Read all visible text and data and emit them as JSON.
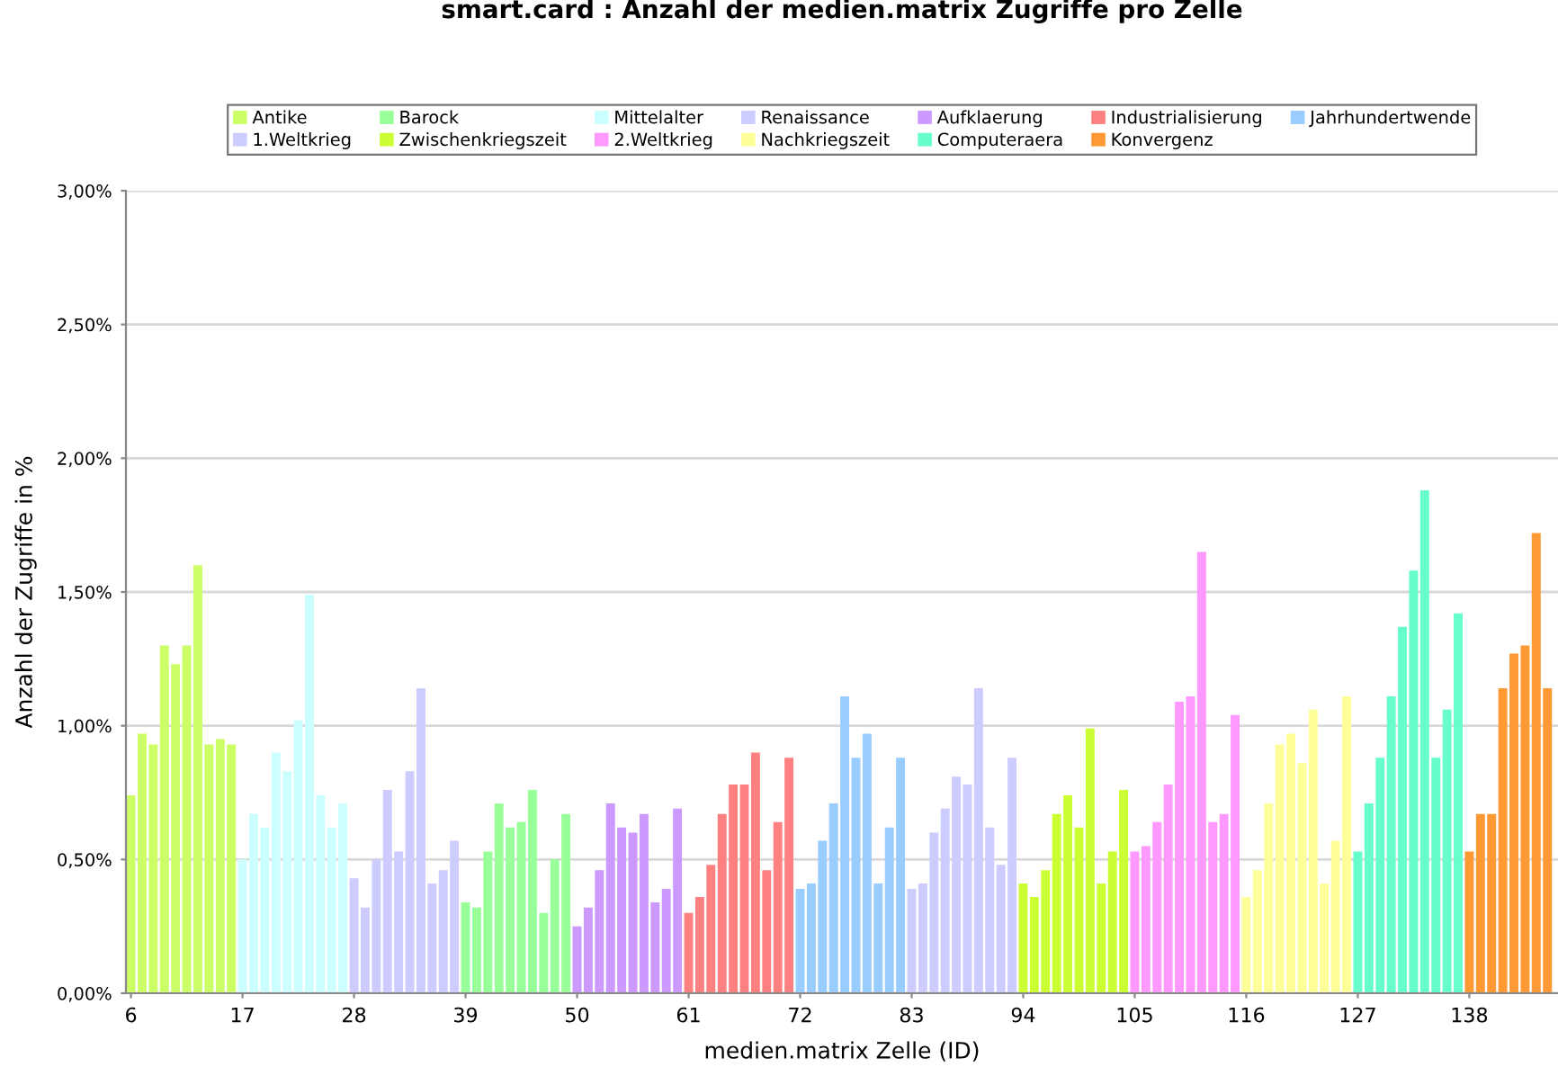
{
  "chart_data": {
    "type": "bar",
    "title": "smart.card : Anzahl der medien.matrix Zugriffe pro Zelle",
    "xlabel": "medien.matrix Zelle (ID)",
    "ylabel": "Anzahl der Zugriffe in %",
    "categories": [
      "6",
      null,
      null,
      null,
      null,
      null,
      null,
      null,
      null,
      null,
      "17",
      null,
      null,
      null,
      null,
      null,
      null,
      null,
      null,
      null,
      "28",
      null,
      null,
      null,
      null,
      null,
      null,
      null,
      null,
      null,
      "39",
      null,
      null,
      null,
      null,
      null,
      null,
      null,
      null,
      null,
      "50",
      null,
      null,
      null,
      null,
      null,
      null,
      null,
      null,
      null,
      "61",
      null,
      null,
      null,
      null,
      null,
      null,
      null,
      null,
      null,
      "72",
      null,
      null,
      null,
      null,
      null,
      null,
      null,
      null,
      null,
      "83",
      null,
      null,
      null,
      null,
      null,
      null,
      null,
      null,
      null,
      "94",
      null,
      null,
      null,
      null,
      null,
      null,
      null,
      null,
      null,
      "105",
      null,
      null,
      null,
      null,
      null,
      null,
      null,
      null,
      null,
      "116",
      null,
      null,
      null,
      null,
      null,
      null,
      null,
      null,
      null,
      "127",
      null,
      null,
      null,
      null,
      null,
      null,
      null,
      null,
      null,
      "138",
      null,
      null,
      null,
      null,
      null,
      null,
      null
    ],
    "series": [
      {
        "name": "Antike",
        "color": "#ccff66",
        "values": [
          0.74,
          0.97,
          0.93,
          1.3,
          1.23,
          1.3,
          1.6,
          0.93,
          0.95,
          0.93,
          null,
          null,
          null,
          null,
          null,
          null,
          null,
          null,
          null,
          null,
          null,
          null,
          null,
          null,
          null,
          null,
          null,
          null,
          null,
          null,
          null,
          null,
          null,
          null,
          null,
          null,
          null,
          null,
          null,
          null,
          null,
          null,
          null,
          null,
          null,
          null,
          null,
          null,
          null,
          null,
          null,
          null,
          null,
          null,
          null,
          null,
          null,
          null,
          null,
          null,
          null,
          null,
          null,
          null,
          null,
          null,
          null,
          null,
          null,
          null,
          null,
          null,
          null,
          null,
          null,
          null,
          null,
          null,
          null,
          null,
          null,
          null,
          null,
          null,
          null,
          null,
          null,
          null,
          null,
          null,
          null,
          null,
          null,
          null,
          null,
          null,
          null,
          null,
          null,
          null,
          null,
          null,
          null,
          null,
          null,
          null,
          null,
          null,
          null,
          null,
          null,
          null,
          null,
          null,
          null,
          null,
          null,
          null,
          null,
          null,
          null,
          null,
          null,
          null,
          null,
          null,
          null,
          null
        ]
      },
      {
        "name": "Barock",
        "color": "#99ff99",
        "values": [
          null,
          null,
          null,
          null,
          null,
          null,
          null,
          null,
          null,
          null,
          null,
          null,
          null,
          null,
          null,
          null,
          null,
          null,
          null,
          null,
          null,
          null,
          null,
          null,
          null,
          null,
          null,
          null,
          null,
          null,
          0.34,
          0.32,
          0.53,
          0.71,
          0.62,
          0.64,
          0.76,
          0.3,
          0.5,
          0.67,
          null,
          null,
          null,
          null,
          null,
          null,
          null,
          null,
          null,
          null,
          null,
          null,
          null,
          null,
          null,
          null,
          null,
          null,
          null,
          null,
          null,
          null,
          null,
          null,
          null,
          null,
          null,
          null,
          null,
          null,
          null,
          null,
          null,
          null,
          null,
          null,
          null,
          null,
          null,
          null,
          null,
          null,
          null,
          null,
          null,
          null,
          null,
          null,
          null,
          null,
          null,
          null,
          null,
          null,
          null,
          null,
          null,
          null,
          null,
          null,
          null,
          null,
          null,
          null,
          null,
          null,
          null,
          null,
          null,
          null,
          null,
          null,
          null,
          null,
          null,
          null,
          null,
          null,
          null,
          null,
          null,
          null,
          null,
          null,
          null,
          null,
          null,
          null
        ]
      },
      {
        "name": "Mittelalter",
        "color": "#ccffff",
        "values": [
          null,
          null,
          null,
          null,
          null,
          null,
          null,
          null,
          null,
          null,
          0.5,
          0.67,
          0.62,
          0.9,
          0.83,
          1.02,
          1.49,
          0.74,
          0.62,
          0.71,
          null,
          null,
          null,
          null,
          null,
          null,
          null,
          null,
          null,
          null,
          null,
          null,
          null,
          null,
          null,
          null,
          null,
          null,
          null,
          null,
          null,
          null,
          null,
          null,
          null,
          null,
          null,
          null,
          null,
          null,
          null,
          null,
          null,
          null,
          null,
          null,
          null,
          null,
          null,
          null,
          null,
          null,
          null,
          null,
          null,
          null,
          null,
          null,
          null,
          null,
          null,
          null,
          null,
          null,
          null,
          null,
          null,
          null,
          null,
          null,
          null,
          null,
          null,
          null,
          null,
          null,
          null,
          null,
          null,
          null,
          null,
          null,
          null,
          null,
          null,
          null,
          null,
          null,
          null,
          null,
          null,
          null,
          null,
          null,
          null,
          null,
          null,
          null,
          null,
          null,
          null,
          null,
          null,
          null,
          null,
          null,
          null,
          null,
          null,
          null,
          null,
          null,
          null,
          null,
          null,
          null,
          null,
          null
        ]
      },
      {
        "name": "Renaissance",
        "color": "#ccccff",
        "values": [
          null,
          null,
          null,
          null,
          null,
          null,
          null,
          null,
          null,
          null,
          null,
          null,
          null,
          null,
          null,
          null,
          null,
          null,
          null,
          null,
          0.43,
          0.32,
          0.5,
          0.76,
          0.53,
          0.83,
          1.14,
          0.41,
          0.46,
          0.57,
          null,
          null,
          null,
          null,
          null,
          null,
          null,
          null,
          null,
          null,
          null,
          null,
          null,
          null,
          null,
          null,
          null,
          null,
          null,
          null,
          null,
          null,
          null,
          null,
          null,
          null,
          null,
          null,
          null,
          null,
          null,
          null,
          null,
          null,
          null,
          null,
          null,
          null,
          null,
          null,
          null,
          null,
          null,
          null,
          null,
          null,
          null,
          null,
          null,
          null,
          null,
          null,
          null,
          null,
          null,
          null,
          null,
          null,
          null,
          null,
          null,
          null,
          null,
          null,
          null,
          null,
          null,
          null,
          null,
          null,
          null,
          null,
          null,
          null,
          null,
          null,
          null,
          null,
          null,
          null,
          null,
          null,
          null,
          null,
          null,
          null,
          null,
          null,
          null,
          null,
          null,
          null,
          null,
          null,
          null,
          null,
          null,
          null
        ]
      },
      {
        "name": "Aufklaerung",
        "color": "#cc99ff",
        "values": [
          null,
          null,
          null,
          null,
          null,
          null,
          null,
          null,
          null,
          null,
          null,
          null,
          null,
          null,
          null,
          null,
          null,
          null,
          null,
          null,
          null,
          null,
          null,
          null,
          null,
          null,
          null,
          null,
          null,
          null,
          null,
          null,
          null,
          null,
          null,
          null,
          null,
          null,
          null,
          null,
          0.25,
          0.32,
          0.46,
          0.71,
          0.62,
          0.6,
          0.67,
          0.34,
          0.39,
          0.69,
          null,
          null,
          null,
          null,
          null,
          null,
          null,
          null,
          null,
          null,
          null,
          null,
          null,
          null,
          null,
          null,
          null,
          null,
          null,
          null,
          null,
          null,
          null,
          null,
          null,
          null,
          null,
          null,
          null,
          null,
          null,
          null,
          null,
          null,
          null,
          null,
          null,
          null,
          null,
          null,
          null,
          null,
          null,
          null,
          null,
          null,
          null,
          null,
          null,
          null,
          null,
          null,
          null,
          null,
          null,
          null,
          null,
          null,
          null,
          null,
          null,
          null,
          null,
          null,
          null,
          null,
          null,
          null,
          null,
          null,
          null,
          null,
          null,
          null,
          null,
          null,
          null,
          null
        ]
      },
      {
        "name": "Industrialisierung",
        "color": "#ff8080",
        "values": [
          null,
          null,
          null,
          null,
          null,
          null,
          null,
          null,
          null,
          null,
          null,
          null,
          null,
          null,
          null,
          null,
          null,
          null,
          null,
          null,
          null,
          null,
          null,
          null,
          null,
          null,
          null,
          null,
          null,
          null,
          null,
          null,
          null,
          null,
          null,
          null,
          null,
          null,
          null,
          null,
          null,
          null,
          null,
          null,
          null,
          null,
          null,
          null,
          null,
          null,
          0.3,
          0.36,
          0.48,
          0.67,
          0.78,
          0.78,
          0.9,
          0.46,
          0.64,
          0.88,
          null,
          null,
          null,
          null,
          null,
          null,
          null,
          null,
          null,
          null,
          null,
          null,
          null,
          null,
          null,
          null,
          null,
          null,
          null,
          null,
          null,
          null,
          null,
          null,
          null,
          null,
          null,
          null,
          null,
          null,
          null,
          null,
          null,
          null,
          null,
          null,
          null,
          null,
          null,
          null,
          null,
          null,
          null,
          null,
          null,
          null,
          null,
          null,
          null,
          null,
          null,
          null,
          null,
          null,
          null,
          null,
          null,
          null,
          null,
          null,
          null,
          null,
          null,
          null,
          null,
          null,
          null,
          null
        ]
      },
      {
        "name": "Jahrhundertwende",
        "color": "#99ccff",
        "values": [
          null,
          null,
          null,
          null,
          null,
          null,
          null,
          null,
          null,
          null,
          null,
          null,
          null,
          null,
          null,
          null,
          null,
          null,
          null,
          null,
          null,
          null,
          null,
          null,
          null,
          null,
          null,
          null,
          null,
          null,
          null,
          null,
          null,
          null,
          null,
          null,
          null,
          null,
          null,
          null,
          null,
          null,
          null,
          null,
          null,
          null,
          null,
          null,
          null,
          null,
          null,
          null,
          null,
          null,
          null,
          null,
          null,
          null,
          null,
          null,
          0.39,
          0.41,
          0.57,
          0.71,
          1.11,
          0.88,
          0.97,
          0.41,
          0.62,
          0.88,
          null,
          null,
          null,
          null,
          null,
          null,
          null,
          null,
          null,
          null,
          null,
          null,
          null,
          null,
          null,
          null,
          null,
          null,
          null,
          null,
          null,
          null,
          null,
          null,
          null,
          null,
          null,
          null,
          null,
          null,
          null,
          null,
          null,
          null,
          null,
          null,
          null,
          null,
          null,
          null,
          null,
          null,
          null,
          null,
          null,
          null,
          null,
          null,
          null,
          null,
          null,
          null,
          null,
          null,
          null,
          null,
          null,
          null
        ]
      },
      {
        "name": "1.Weltkrieg",
        "color": "#ccccff",
        "values": [
          null,
          null,
          null,
          null,
          null,
          null,
          null,
          null,
          null,
          null,
          null,
          null,
          null,
          null,
          null,
          null,
          null,
          null,
          null,
          null,
          null,
          null,
          null,
          null,
          null,
          null,
          null,
          null,
          null,
          null,
          null,
          null,
          null,
          null,
          null,
          null,
          null,
          null,
          null,
          null,
          null,
          null,
          null,
          null,
          null,
          null,
          null,
          null,
          null,
          null,
          null,
          null,
          null,
          null,
          null,
          null,
          null,
          null,
          null,
          null,
          null,
          null,
          null,
          null,
          null,
          null,
          null,
          null,
          null,
          null,
          0.39,
          0.41,
          0.6,
          0.69,
          0.81,
          0.78,
          1.14,
          0.62,
          0.48,
          0.88,
          null,
          null,
          null,
          null,
          null,
          null,
          null,
          null,
          null,
          null,
          null,
          null,
          null,
          null,
          null,
          null,
          null,
          null,
          null,
          null,
          null,
          null,
          null,
          null,
          null,
          null,
          null,
          null,
          null,
          null,
          null,
          null,
          null,
          null,
          null,
          null,
          null,
          null,
          null,
          null,
          null,
          null,
          null,
          null,
          null,
          null,
          null,
          null
        ]
      },
      {
        "name": "Zwischenkriegszeit",
        "color": "#ccff33",
        "values": [
          null,
          null,
          null,
          null,
          null,
          null,
          null,
          null,
          null,
          null,
          null,
          null,
          null,
          null,
          null,
          null,
          null,
          null,
          null,
          null,
          null,
          null,
          null,
          null,
          null,
          null,
          null,
          null,
          null,
          null,
          null,
          null,
          null,
          null,
          null,
          null,
          null,
          null,
          null,
          null,
          null,
          null,
          null,
          null,
          null,
          null,
          null,
          null,
          null,
          null,
          null,
          null,
          null,
          null,
          null,
          null,
          null,
          null,
          null,
          null,
          null,
          null,
          null,
          null,
          null,
          null,
          null,
          null,
          null,
          null,
          null,
          null,
          null,
          null,
          null,
          null,
          null,
          null,
          null,
          null,
          0.41,
          0.36,
          0.46,
          0.67,
          0.74,
          0.62,
          0.99,
          0.41,
          0.53,
          0.76,
          null,
          null,
          null,
          null,
          null,
          null,
          null,
          null,
          null,
          null,
          null,
          null,
          null,
          null,
          null,
          null,
          null,
          null,
          null,
          null,
          null,
          null,
          null,
          null,
          null,
          null,
          null,
          null,
          null,
          null,
          null,
          null,
          null,
          null,
          null,
          null,
          null,
          null
        ]
      },
      {
        "name": "2.Weltkrieg",
        "color": "#ff99ff",
        "values": [
          null,
          null,
          null,
          null,
          null,
          null,
          null,
          null,
          null,
          null,
          null,
          null,
          null,
          null,
          null,
          null,
          null,
          null,
          null,
          null,
          null,
          null,
          null,
          null,
          null,
          null,
          null,
          null,
          null,
          null,
          null,
          null,
          null,
          null,
          null,
          null,
          null,
          null,
          null,
          null,
          null,
          null,
          null,
          null,
          null,
          null,
          null,
          null,
          null,
          null,
          null,
          null,
          null,
          null,
          null,
          null,
          null,
          null,
          null,
          null,
          null,
          null,
          null,
          null,
          null,
          null,
          null,
          null,
          null,
          null,
          null,
          null,
          null,
          null,
          null,
          null,
          null,
          null,
          null,
          null,
          null,
          null,
          null,
          null,
          null,
          null,
          null,
          null,
          null,
          null,
          0.53,
          0.55,
          0.64,
          0.78,
          1.09,
          1.11,
          1.65,
          0.64,
          0.67,
          1.04,
          null,
          null,
          null,
          null,
          null,
          null,
          null,
          null,
          null,
          null,
          null,
          null,
          null,
          null,
          null,
          null,
          null,
          null,
          null,
          null,
          null,
          null,
          null,
          null,
          null,
          null,
          null,
          null
        ]
      },
      {
        "name": "Nachkriegszeit",
        "color": "#ffff99",
        "values": [
          null,
          null,
          null,
          null,
          null,
          null,
          null,
          null,
          null,
          null,
          null,
          null,
          null,
          null,
          null,
          null,
          null,
          null,
          null,
          null,
          null,
          null,
          null,
          null,
          null,
          null,
          null,
          null,
          null,
          null,
          null,
          null,
          null,
          null,
          null,
          null,
          null,
          null,
          null,
          null,
          null,
          null,
          null,
          null,
          null,
          null,
          null,
          null,
          null,
          null,
          null,
          null,
          null,
          null,
          null,
          null,
          null,
          null,
          null,
          null,
          null,
          null,
          null,
          null,
          null,
          null,
          null,
          null,
          null,
          null,
          null,
          null,
          null,
          null,
          null,
          null,
          null,
          null,
          null,
          null,
          null,
          null,
          null,
          null,
          null,
          null,
          null,
          null,
          null,
          null,
          null,
          null,
          null,
          null,
          null,
          null,
          null,
          null,
          null,
          null,
          0.36,
          0.46,
          0.71,
          0.93,
          0.97,
          0.86,
          1.06,
          0.41,
          0.57,
          1.11,
          null,
          null,
          null,
          null,
          null,
          null,
          null,
          null,
          null,
          null,
          null,
          null,
          null,
          null,
          null,
          null,
          null,
          null
        ]
      },
      {
        "name": "Computeraera",
        "color": "#66ffcc",
        "values": [
          null,
          null,
          null,
          null,
          null,
          null,
          null,
          null,
          null,
          null,
          null,
          null,
          null,
          null,
          null,
          null,
          null,
          null,
          null,
          null,
          null,
          null,
          null,
          null,
          null,
          null,
          null,
          null,
          null,
          null,
          null,
          null,
          null,
          null,
          null,
          null,
          null,
          null,
          null,
          null,
          null,
          null,
          null,
          null,
          null,
          null,
          null,
          null,
          null,
          null,
          null,
          null,
          null,
          null,
          null,
          null,
          null,
          null,
          null,
          null,
          null,
          null,
          null,
          null,
          null,
          null,
          null,
          null,
          null,
          null,
          null,
          null,
          null,
          null,
          null,
          null,
          null,
          null,
          null,
          null,
          null,
          null,
          null,
          null,
          null,
          null,
          null,
          null,
          null,
          null,
          null,
          null,
          null,
          null,
          null,
          null,
          null,
          null,
          null,
          null,
          null,
          null,
          null,
          null,
          null,
          null,
          null,
          null,
          null,
          null,
          0.53,
          0.71,
          0.88,
          1.11,
          1.37,
          1.58,
          1.88,
          0.88,
          1.06,
          1.42,
          null,
          null,
          null,
          null,
          null,
          null,
          null,
          null
        ]
      },
      {
        "name": "Konvergenz",
        "color": "#ff9933",
        "values": [
          null,
          null,
          null,
          null,
          null,
          null,
          null,
          null,
          null,
          null,
          null,
          null,
          null,
          null,
          null,
          null,
          null,
          null,
          null,
          null,
          null,
          null,
          null,
          null,
          null,
          null,
          null,
          null,
          null,
          null,
          null,
          null,
          null,
          null,
          null,
          null,
          null,
          null,
          null,
          null,
          null,
          null,
          null,
          null,
          null,
          null,
          null,
          null,
          null,
          null,
          null,
          null,
          null,
          null,
          null,
          null,
          null,
          null,
          null,
          null,
          null,
          null,
          null,
          null,
          null,
          null,
          null,
          null,
          null,
          null,
          null,
          null,
          null,
          null,
          null,
          null,
          null,
          null,
          null,
          null,
          null,
          null,
          null,
          null,
          null,
          null,
          null,
          null,
          null,
          null,
          null,
          null,
          null,
          null,
          null,
          null,
          null,
          null,
          null,
          null,
          null,
          null,
          null,
          null,
          null,
          null,
          null,
          null,
          null,
          null,
          null,
          null,
          null,
          null,
          null,
          null,
          null,
          null,
          null,
          null,
          0.53,
          0.67,
          0.67,
          1.14,
          1.27,
          1.3,
          1.72,
          1.14
        ]
      }
    ],
    "ylim": [
      0,
      3
    ],
    "yticks": [
      {
        "value": 0,
        "label": "0,00%"
      },
      {
        "value": 0.5,
        "label": "0,50%"
      },
      {
        "value": 1,
        "label": "1,00%"
      },
      {
        "value": 1.5,
        "label": "1,50%"
      },
      {
        "value": 2,
        "label": "2,00%"
      },
      {
        "value": 2.5,
        "label": "2,50%"
      },
      {
        "value": 3,
        "label": "3,00%"
      }
    ],
    "grid": "y",
    "legend": "top"
  }
}
